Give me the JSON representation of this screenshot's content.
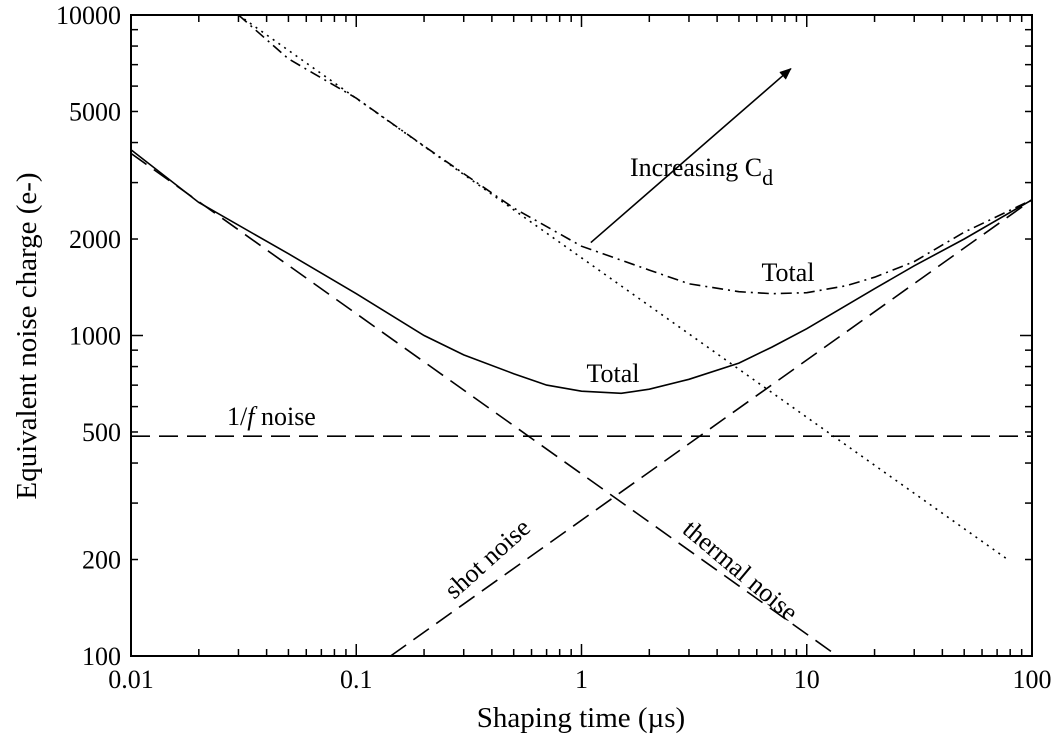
{
  "chart_data": {
    "type": "line",
    "xlabel": "Shaping time (µs)",
    "ylabel": "Equivalent noise charge  (e-)",
    "xscale": "log",
    "yscale": "log",
    "xlim": [
      0.01,
      100
    ],
    "ylim": [
      100,
      10000
    ],
    "grid": false,
    "xticks": [
      {
        "value": 0.01,
        "label": "0.01"
      },
      {
        "value": 0.1,
        "label": "0.1"
      },
      {
        "value": 1,
        "label": "1"
      },
      {
        "value": 10,
        "label": "10"
      },
      {
        "value": 100,
        "label": "100"
      }
    ],
    "yticks": [
      {
        "value": 100,
        "label": "100"
      },
      {
        "value": 200,
        "label": "200"
      },
      {
        "value": 500,
        "label": "500"
      },
      {
        "value": 1000,
        "label": "1000"
      },
      {
        "value": 2000,
        "label": "2000"
      },
      {
        "value": 5000,
        "label": "5000"
      },
      {
        "value": 10000,
        "label": "10000"
      }
    ],
    "series": [
      {
        "key": "total_low",
        "style": "solid",
        "points": [
          [
            0.01,
            3800
          ],
          [
            0.02,
            2600
          ],
          [
            0.05,
            1800
          ],
          [
            0.1,
            1350
          ],
          [
            0.2,
            1000
          ],
          [
            0.3,
            870
          ],
          [
            0.5,
            760
          ],
          [
            0.7,
            700
          ],
          [
            1,
            670
          ],
          [
            1.5,
            660
          ],
          [
            2,
            680
          ],
          [
            3,
            730
          ],
          [
            5,
            820
          ],
          [
            7,
            920
          ],
          [
            10,
            1050
          ],
          [
            20,
            1400
          ],
          [
            30,
            1650
          ],
          [
            50,
            2000
          ],
          [
            100,
            2650
          ]
        ]
      },
      {
        "key": "thermal_noise",
        "style": "long-dash",
        "points": [
          [
            0.01,
            3700
          ],
          [
            13.7,
            100
          ]
        ]
      },
      {
        "key": "shot_noise",
        "style": "long-dash",
        "points": [
          [
            0.142,
            100
          ],
          [
            100,
            2650
          ]
        ]
      },
      {
        "key": "one_over_f_noise",
        "style": "long-dash",
        "points": [
          [
            0.01,
            485
          ],
          [
            100,
            485
          ]
        ]
      },
      {
        "key": "total_high",
        "style": "dash-dot",
        "points": [
          [
            0.03,
            10000
          ],
          [
            0.05,
            7300
          ],
          [
            0.1,
            5500
          ],
          [
            0.2,
            3900
          ],
          [
            0.3,
            3200
          ],
          [
            0.5,
            2500
          ],
          [
            1,
            1900
          ],
          [
            2,
            1600
          ],
          [
            3,
            1450
          ],
          [
            5,
            1370
          ],
          [
            7,
            1350
          ],
          [
            10,
            1360
          ],
          [
            15,
            1430
          ],
          [
            20,
            1520
          ],
          [
            30,
            1700
          ],
          [
            50,
            2100
          ],
          [
            100,
            2650
          ]
        ]
      },
      {
        "key": "thermal_high",
        "style": "dotted",
        "points": [
          [
            0.03,
            10000
          ],
          [
            78,
            200
          ]
        ]
      }
    ],
    "annotations": {
      "total_low": "Total",
      "total_high": "Total",
      "one_over_f_prefix": "1/",
      "one_over_f_italic": "f",
      "one_over_f_suffix": " noise",
      "shot": "shot noise",
      "thermal": "thermal noise",
      "increasing": "Increasing C",
      "increasing_sub": "d"
    },
    "arrow": {
      "from": [
        1.1,
        1950
      ],
      "to": [
        8.5,
        6800
      ]
    }
  }
}
